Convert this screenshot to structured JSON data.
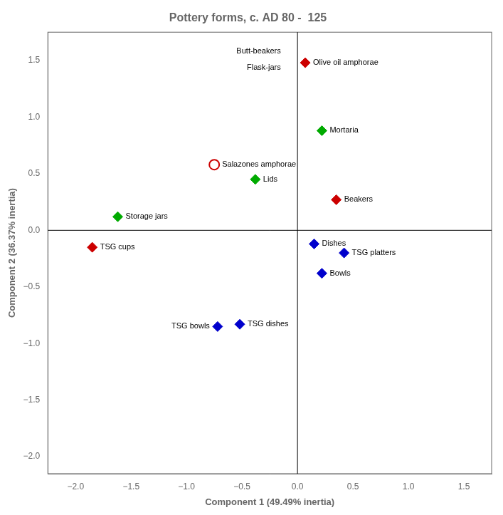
{
  "chart_data": {
    "type": "scatter",
    "title": "Pottery forms, c. AD 80 -  125",
    "x_label": "Component 1 (49.49% inertia)",
    "y_label": "Component 2 (36.37% inertia)",
    "xlim": [
      -2.25,
      1.75
    ],
    "ylim": [
      -2.15,
      1.75
    ],
    "xticks": [
      {
        "value": -2.0,
        "label": "−2.0"
      },
      {
        "value": -1.5,
        "label": "−1.5"
      },
      {
        "value": -1.0,
        "label": "−1.0"
      },
      {
        "value": -0.5,
        "label": "−0.5"
      },
      {
        "value": 0.0,
        "label": "0.0"
      },
      {
        "value": 0.5,
        "label": "0.5"
      },
      {
        "value": 1.0,
        "label": "1.0"
      },
      {
        "value": 1.5,
        "label": "1.5"
      }
    ],
    "yticks": [
      {
        "value": -2.0,
        "label": "−2.0"
      },
      {
        "value": -1.5,
        "label": "−1.5"
      },
      {
        "value": -1.0,
        "label": "−1.0"
      },
      {
        "value": -0.5,
        "label": "−0.5"
      },
      {
        "value": 0.0,
        "label": "0.0"
      },
      {
        "value": 0.5,
        "label": "0.5"
      },
      {
        "value": 1.0,
        "label": "1.0"
      },
      {
        "value": 1.5,
        "label": "1.5"
      }
    ],
    "grid": false,
    "series": [
      {
        "color": "#cc0000",
        "marker": "diamond",
        "x": [
          0.07,
          0.35,
          -1.85
        ],
        "values": [
          1.48,
          0.27,
          -0.15
        ],
        "labels": [
          "Olive oil amphorae",
          "Beakers",
          "TSG cups"
        ]
      },
      {
        "color": "#cc0000",
        "marker": "open_circle",
        "x": [
          -0.75
        ],
        "values": [
          0.58
        ],
        "labels": [
          "Salazones amphorae"
        ]
      },
      {
        "color": "#00aa00",
        "marker": "diamond",
        "x": [
          0.22,
          -0.38,
          -1.62
        ],
        "values": [
          0.88,
          0.45,
          0.12
        ],
        "labels": [
          "Mortaria",
          "Lids",
          "Storage jars"
        ]
      },
      {
        "color": "#0000cc",
        "marker": "diamond",
        "x": [
          0.15,
          0.42,
          0.22,
          -0.72,
          -0.52
        ],
        "values": [
          -0.12,
          -0.2,
          -0.38,
          -0.85,
          -0.83
        ],
        "labels": [
          "Dishes",
          "TSG platters",
          "Bowls",
          "TSG bowls",
          "TSG dishes"
        ]
      }
    ],
    "annotations": [
      {
        "text": "Butt-beakers",
        "x": -0.15,
        "y": 1.55
      },
      {
        "text": "Flask-jars",
        "x": -0.15,
        "y": 1.4
      }
    ]
  }
}
